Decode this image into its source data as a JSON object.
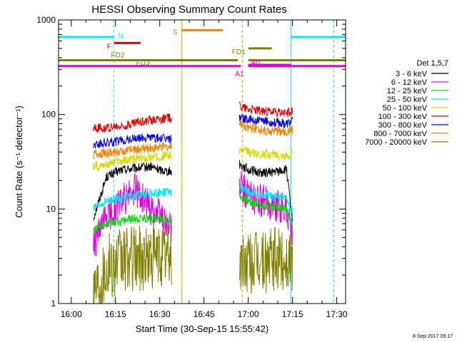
{
  "chart_data": {
    "type": "line",
    "title": "HESSI Observing Summary Count Rates",
    "xlabel": "Start Time (30-Sep-15 15:55:42)",
    "ylabel": "Count Rate (s⁻¹ detector⁻¹)",
    "xscale": "time",
    "yscale": "log",
    "xlim": [
      "15:55:42",
      "17:33:00"
    ],
    "ylim": [
      1,
      1000
    ],
    "grid": false,
    "legend_position": "right",
    "x_ticks": [
      "16:00",
      "16:15",
      "16:30",
      "16:45",
      "17:00",
      "17:15",
      "17:30"
    ],
    "y_ticks": [
      "1",
      "10",
      "100",
      "1000"
    ],
    "legend_title": "Det 1,5,7",
    "timestamp": "8-Sep-2017 09:17",
    "data_gaps": [
      [
        "15:55:42",
        "16:07:30"
      ],
      [
        "16:34:30",
        "16:55:30"
      ],
      [
        "17:15:30",
        "17:33:00"
      ]
    ],
    "series": [
      {
        "name": "3 - 6 keV",
        "color": "#000000",
        "x": [
          "16:07:30",
          "16:12",
          "16:17",
          "16:22",
          "16:27",
          "16:30",
          "16:34",
          "16:57",
          "17:00",
          "17:05",
          "17:10",
          "17:13",
          "17:15"
        ],
        "y": [
          8,
          22,
          26,
          27,
          28,
          26,
          25,
          30,
          26,
          24,
          25,
          26,
          7
        ]
      },
      {
        "name": "6 - 12 keV",
        "color": "#e000e0",
        "x": [
          "16:07:30",
          "16:12",
          "16:17",
          "16:22",
          "16:27",
          "16:30",
          "16:34",
          "16:57",
          "17:00",
          "17:05",
          "17:10",
          "17:13",
          "17:15"
        ],
        "y": [
          4,
          8,
          12,
          16,
          10,
          9,
          6,
          18,
          14,
          12,
          11,
          10,
          5
        ]
      },
      {
        "name": "12 - 25 keV",
        "color": "#00e000",
        "x": [
          "16:07:30",
          "16:12",
          "16:17",
          "16:22",
          "16:27",
          "16:30",
          "16:34",
          "16:57",
          "17:00",
          "17:05",
          "17:10",
          "17:13",
          "17:15"
        ],
        "y": [
          6,
          7,
          7.5,
          8,
          8,
          8,
          7.5,
          14,
          12,
          11,
          10.5,
          10,
          6
        ]
      },
      {
        "name": "25 - 50 keV",
        "color": "#00e8e8",
        "x": [
          "16:07:30",
          "16:12",
          "16:17",
          "16:22",
          "16:27",
          "16:30",
          "16:34",
          "16:57",
          "17:00",
          "17:05",
          "17:10",
          "17:13",
          "17:15"
        ],
        "y": [
          10,
          12,
          13,
          14,
          14.5,
          15,
          15,
          17,
          15,
          14,
          13.5,
          13,
          9
        ]
      },
      {
        "name": "50 - 100 keV",
        "color": "#d8d800",
        "x": [
          "16:07:30",
          "16:12",
          "16:17",
          "16:22",
          "16:27",
          "16:30",
          "16:34",
          "16:57",
          "17:00",
          "17:05",
          "17:10",
          "17:13",
          "17:15"
        ],
        "y": [
          28,
          30,
          32,
          34,
          35,
          36,
          37,
          42,
          40,
          38,
          37,
          36,
          38
        ]
      },
      {
        "name": "100 - 300 keV",
        "color": "#e00000",
        "x": [
          "16:07:30",
          "16:12",
          "16:17",
          "16:22",
          "16:27",
          "16:30",
          "16:34",
          "16:57",
          "17:00",
          "17:05",
          "17:10",
          "17:13",
          "17:15"
        ],
        "y": [
          72,
          72,
          75,
          82,
          88,
          90,
          92,
          125,
          115,
          108,
          105,
          103,
          108
        ]
      },
      {
        "name": "300 - 800 keV",
        "color": "#0000e8",
        "x": [
          "16:07:30",
          "16:12",
          "16:17",
          "16:22",
          "16:27",
          "16:30",
          "16:34",
          "16:57",
          "17:00",
          "17:05",
          "17:10",
          "17:13",
          "17:15"
        ],
        "y": [
          48,
          50,
          53,
          56,
          57,
          56,
          55,
          95,
          88,
          84,
          82,
          80,
          85
        ]
      },
      {
        "name": "800 - 7000 keV",
        "color": "#f08000",
        "x": [
          "16:07:30",
          "16:12",
          "16:17",
          "16:22",
          "16:27",
          "16:30",
          "16:34",
          "16:57",
          "17:00",
          "17:05",
          "17:10",
          "17:13",
          "17:15"
        ],
        "y": [
          38,
          39,
          41,
          43,
          44,
          45,
          46,
          82,
          72,
          68,
          66,
          65,
          68
        ]
      },
      {
        "name": "7000 - 20000 keV",
        "color": "#808000",
        "x": [
          "16:07:30",
          "16:12",
          "16:17",
          "16:22",
          "16:27",
          "16:30",
          "16:34",
          "16:57",
          "17:00",
          "17:05",
          "17:10",
          "17:13",
          "17:15"
        ],
        "y": [
          1.5,
          2.5,
          2.8,
          3.0,
          3.1,
          3.2,
          3.2,
          2.5,
          2.8,
          2.8,
          2.9,
          2.9,
          3.0
        ]
      }
    ],
    "flags": [
      {
        "label": "N",
        "color": "#00e8e8",
        "y": 660,
        "segments": [
          [
            "15:55:42",
            "16:14:30"
          ],
          [
            "17:14:30",
            "17:33:00"
          ]
        ]
      },
      {
        "label": "F",
        "color": "#e00000",
        "y": 570,
        "segments": [
          [
            "16:14:30",
            "16:23:30"
          ]
        ]
      },
      {
        "label": "S",
        "color": "#f08000",
        "y": 780,
        "segments": [
          [
            "16:37:30",
            "16:51:30"
          ]
        ]
      },
      {
        "label": "FD2",
        "color": "#808000",
        "y": 375,
        "segments": [
          [
            "15:55:42",
            "16:56:30"
          ],
          [
            "17:00:00",
            "17:33:00"
          ]
        ]
      },
      {
        "label": "FD3",
        "color": "#808000",
        "y": 375,
        "segments": []
      },
      {
        "label": "FD1",
        "color": "#808000",
        "y": 500,
        "segments": [
          [
            "17:00:00",
            "17:08:00"
          ]
        ]
      },
      {
        "label": "A0",
        "color": "#e000e0",
        "y": 335,
        "segments": [
          [
            "17:00:00",
            "17:14:30"
          ]
        ]
      },
      {
        "label": "A1",
        "color": "#e000e0",
        "y": 325,
        "segments": [
          [
            "15:55:42",
            "16:57:30"
          ],
          [
            "17:00:00",
            "17:33:00"
          ]
        ]
      }
    ],
    "vertical_markers": [
      {
        "time": "16:14:30",
        "color": "#00e8e8",
        "dashed": true
      },
      {
        "time": "16:37:30",
        "color": "#d8a000",
        "dashed": false
      },
      {
        "time": "16:58:00",
        "color": "#d8a000",
        "dashed": true
      },
      {
        "time": "17:14:30",
        "color": "#00e8e8",
        "dashed": false
      },
      {
        "time": "17:29:00",
        "color": "#00e8e8",
        "dashed": true
      }
    ]
  }
}
